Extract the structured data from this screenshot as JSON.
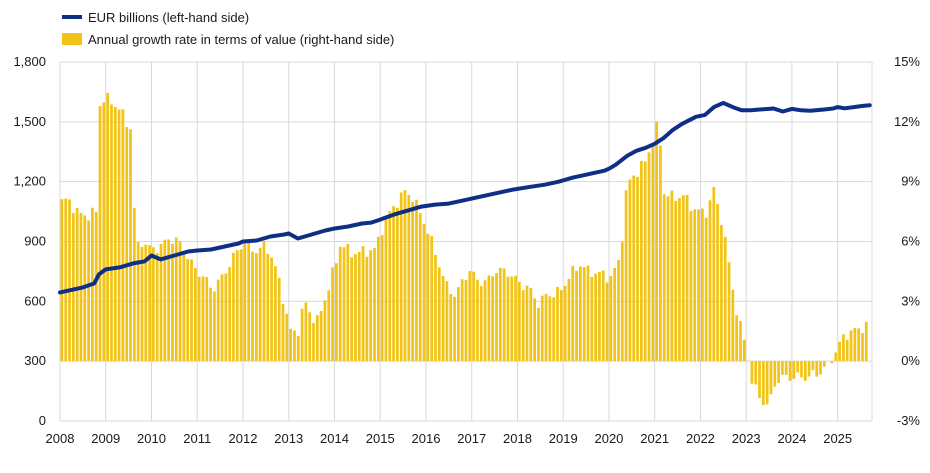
{
  "chart_data": {
    "type": "bar+line",
    "title": "",
    "xlabel": "",
    "legend": [
      {
        "name": "EUR billions (left-hand side)",
        "color": "#0d2f86",
        "kind": "line"
      },
      {
        "name": "Annual growth rate in terms of value (right-hand side)",
        "color": "#f2c418",
        "kind": "bar"
      }
    ],
    "x_ticks": [
      "2008",
      "2009",
      "2010",
      "2011",
      "2012",
      "2013",
      "2014",
      "2015",
      "2016",
      "2017",
      "2018",
      "2019",
      "2020",
      "2021",
      "2022",
      "2023",
      "2024",
      "2025"
    ],
    "x_range": [
      2008.0,
      2025.75
    ],
    "left_axis": {
      "ticks": [
        0,
        300,
        600,
        900,
        1200,
        1500,
        1800
      ],
      "tick_labels": [
        "0",
        "300",
        "600",
        "900",
        "1,200",
        "1,500",
        "1,800"
      ],
      "range": [
        0,
        1800
      ]
    },
    "right_axis": {
      "ticks": [
        -3,
        0,
        3,
        6,
        9,
        12,
        15
      ],
      "tick_labels": [
        "-3%",
        "0%",
        "3%",
        "6%",
        "9%",
        "12%",
        "15%"
      ],
      "range": [
        -3,
        15
      ]
    },
    "bar_series": {
      "name": "Annual growth rate in terms of value (right-hand side)",
      "anchors": [
        [
          2008.0,
          8.0
        ],
        [
          2008.15,
          8.1
        ],
        [
          2008.35,
          7.4
        ],
        [
          2008.6,
          7.3
        ],
        [
          2008.75,
          7.5
        ],
        [
          2008.8,
          12.8
        ],
        [
          2008.95,
          13.2
        ],
        [
          2009.15,
          12.9
        ],
        [
          2009.3,
          12.5
        ],
        [
          2009.45,
          11.8
        ],
        [
          2009.55,
          11.6
        ],
        [
          2009.6,
          5.6
        ],
        [
          2009.75,
          6.0
        ],
        [
          2009.95,
          5.6
        ],
        [
          2010.2,
          5.8
        ],
        [
          2010.35,
          6.2
        ],
        [
          2010.6,
          5.9
        ],
        [
          2010.85,
          4.8
        ],
        [
          2011.1,
          4.2
        ],
        [
          2011.3,
          3.6
        ],
        [
          2011.5,
          4.2
        ],
        [
          2011.7,
          5.0
        ],
        [
          2011.85,
          5.6
        ],
        [
          2012.0,
          6.0
        ],
        [
          2012.2,
          5.5
        ],
        [
          2012.45,
          5.8
        ],
        [
          2012.6,
          5.2
        ],
        [
          2012.75,
          4.0
        ],
        [
          2012.9,
          2.5
        ],
        [
          2013.0,
          1.5
        ],
        [
          2013.15,
          1.4
        ],
        [
          2013.3,
          3.0
        ],
        [
          2013.45,
          2.3
        ],
        [
          2013.6,
          2.0
        ],
        [
          2013.8,
          3.5
        ],
        [
          2014.0,
          5.0
        ],
        [
          2014.1,
          6.0
        ],
        [
          2014.3,
          5.4
        ],
        [
          2014.6,
          5.5
        ],
        [
          2014.85,
          5.6
        ],
        [
          2015.05,
          7.0
        ],
        [
          2015.3,
          7.9
        ],
        [
          2015.5,
          8.5
        ],
        [
          2015.65,
          8.3
        ],
        [
          2015.9,
          7.1
        ],
        [
          2016.05,
          6.2
        ],
        [
          2016.2,
          5.2
        ],
        [
          2016.4,
          3.8
        ],
        [
          2016.6,
          3.3
        ],
        [
          2016.9,
          4.6
        ],
        [
          2017.1,
          4.0
        ],
        [
          2017.3,
          4.0
        ],
        [
          2017.5,
          4.6
        ],
        [
          2017.8,
          4.4
        ],
        [
          2018.0,
          3.9
        ],
        [
          2018.2,
          3.7
        ],
        [
          2018.4,
          2.9
        ],
        [
          2018.6,
          3.3
        ],
        [
          2018.9,
          3.5
        ],
        [
          2019.1,
          4.3
        ],
        [
          2019.35,
          4.9
        ],
        [
          2019.5,
          4.5
        ],
        [
          2019.75,
          4.4
        ],
        [
          2020.0,
          4.2
        ],
        [
          2020.2,
          5.1
        ],
        [
          2020.35,
          8.8
        ],
        [
          2020.5,
          9.3
        ],
        [
          2020.75,
          10.0
        ],
        [
          2020.95,
          11.3
        ],
        [
          2021.05,
          12.1
        ],
        [
          2021.15,
          8.5
        ],
        [
          2021.35,
          8.2
        ],
        [
          2021.6,
          8.3
        ],
        [
          2021.75,
          7.8
        ],
        [
          2021.9,
          7.5
        ],
        [
          2022.1,
          7.5
        ],
        [
          2022.25,
          8.6
        ],
        [
          2022.45,
          6.8
        ],
        [
          2022.6,
          4.6
        ],
        [
          2022.75,
          2.5
        ],
        [
          2022.9,
          1.2
        ],
        [
          2023.0,
          0.2
        ],
        [
          2023.05,
          -0.9
        ],
        [
          2023.25,
          -1.8
        ],
        [
          2023.45,
          -2.3
        ],
        [
          2023.6,
          -1.0
        ],
        [
          2023.8,
          -0.8
        ],
        [
          2024.0,
          -0.8
        ],
        [
          2024.3,
          -0.8
        ],
        [
          2024.55,
          -0.6
        ],
        [
          2024.75,
          -0.2
        ],
        [
          2024.95,
          0.6
        ],
        [
          2025.1,
          1.3
        ],
        [
          2025.3,
          1.5
        ],
        [
          2025.5,
          1.7
        ],
        [
          2025.65,
          1.8
        ]
      ]
    },
    "line_series": {
      "name": "EUR billions (left-hand side)",
      "points": [
        [
          2008.0,
          645
        ],
        [
          2008.2,
          655
        ],
        [
          2008.5,
          670
        ],
        [
          2008.75,
          690
        ],
        [
          2008.85,
          735
        ],
        [
          2009.0,
          760
        ],
        [
          2009.3,
          770
        ],
        [
          2009.6,
          790
        ],
        [
          2009.85,
          800
        ],
        [
          2010.0,
          830
        ],
        [
          2010.2,
          810
        ],
        [
          2010.5,
          830
        ],
        [
          2010.8,
          850
        ],
        [
          2011.0,
          855
        ],
        [
          2011.3,
          860
        ],
        [
          2011.6,
          875
        ],
        [
          2011.9,
          890
        ],
        [
          2012.0,
          900
        ],
        [
          2012.3,
          905
        ],
        [
          2012.6,
          925
        ],
        [
          2012.9,
          935
        ],
        [
          2013.0,
          940
        ],
        [
          2013.2,
          915
        ],
        [
          2013.5,
          935
        ],
        [
          2013.8,
          955
        ],
        [
          2014.0,
          965
        ],
        [
          2014.3,
          975
        ],
        [
          2014.6,
          990
        ],
        [
          2014.8,
          995
        ],
        [
          2015.0,
          1010
        ],
        [
          2015.3,
          1035
        ],
        [
          2015.6,
          1055
        ],
        [
          2015.9,
          1075
        ],
        [
          2016.2,
          1085
        ],
        [
          2016.5,
          1090
        ],
        [
          2016.8,
          1105
        ],
        [
          2017.2,
          1125
        ],
        [
          2017.6,
          1145
        ],
        [
          2017.9,
          1160
        ],
        [
          2018.3,
          1175
        ],
        [
          2018.6,
          1185
        ],
        [
          2018.9,
          1200
        ],
        [
          2019.2,
          1220
        ],
        [
          2019.5,
          1235
        ],
        [
          2019.9,
          1255
        ],
        [
          2020.0,
          1265
        ],
        [
          2020.15,
          1285
        ],
        [
          2020.4,
          1330
        ],
        [
          2020.6,
          1355
        ],
        [
          2020.8,
          1370
        ],
        [
          2021.0,
          1390
        ],
        [
          2021.2,
          1420
        ],
        [
          2021.4,
          1460
        ],
        [
          2021.6,
          1490
        ],
        [
          2021.9,
          1525
        ],
        [
          2022.1,
          1535
        ],
        [
          2022.3,
          1575
        ],
        [
          2022.5,
          1595
        ],
        [
          2022.6,
          1585
        ],
        [
          2022.75,
          1570
        ],
        [
          2022.9,
          1558
        ],
        [
          2023.1,
          1558
        ],
        [
          2023.3,
          1562
        ],
        [
          2023.6,
          1567
        ],
        [
          2023.8,
          1552
        ],
        [
          2024.0,
          1565
        ],
        [
          2024.2,
          1558
        ],
        [
          2024.4,
          1556
        ],
        [
          2024.7,
          1562
        ],
        [
          2024.9,
          1567
        ],
        [
          2025.0,
          1574
        ],
        [
          2025.15,
          1568
        ],
        [
          2025.35,
          1574
        ],
        [
          2025.55,
          1580
        ],
        [
          2025.7,
          1583
        ]
      ]
    }
  }
}
